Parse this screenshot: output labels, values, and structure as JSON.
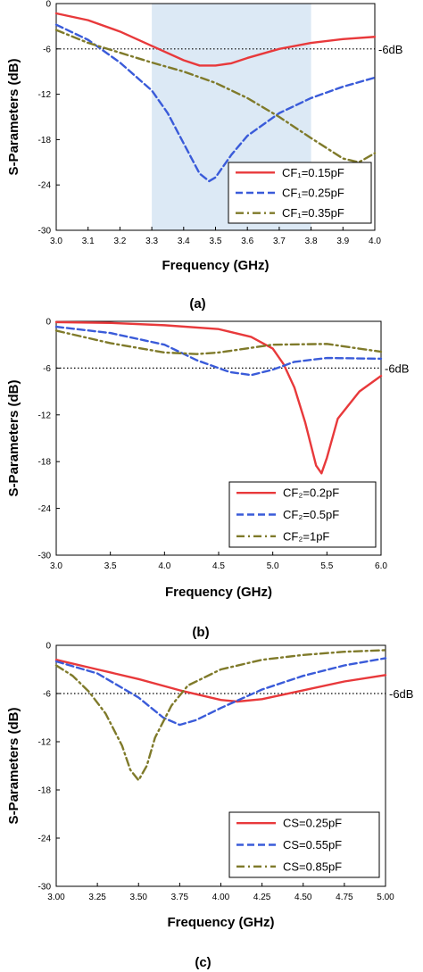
{
  "chart_data": [
    {
      "type": "line",
      "caption": "(a)",
      "xlabel": "Frequency (GHz)",
      "ylabel": "S-Parameters (dB)",
      "xlim": [
        3.0,
        4.0
      ],
      "ylim": [
        -30,
        0
      ],
      "xticks": [
        "3.0",
        "3.1",
        "3.2",
        "3.3",
        "3.4",
        "3.5",
        "3.6",
        "3.7",
        "3.8",
        "3.9",
        "4.0"
      ],
      "yticks": [
        "0",
        "-6",
        "-12",
        "-18",
        "-24",
        "-30"
      ],
      "xtick_values": [
        3.0,
        3.1,
        3.2,
        3.3,
        3.4,
        3.5,
        3.6,
        3.7,
        3.8,
        3.9,
        4.0
      ],
      "ytick_values": [
        0,
        -6,
        -12,
        -18,
        -24,
        -30
      ],
      "reference_line": {
        "y": -6,
        "label": "-6dB"
      },
      "shaded_band": {
        "x": [
          3.3,
          3.8
        ],
        "color": "#dce9f5"
      },
      "legend_position": "bottom-right",
      "series": [
        {
          "name": "CF₁=0.15pF",
          "color": "#e8393b",
          "style": "solid",
          "x": [
            3.0,
            3.1,
            3.2,
            3.3,
            3.4,
            3.45,
            3.5,
            3.55,
            3.6,
            3.7,
            3.8,
            3.9,
            4.0
          ],
          "y": [
            -1.3,
            -2.2,
            -3.7,
            -5.6,
            -7.5,
            -8.2,
            -8.2,
            -7.9,
            -7.2,
            -6.0,
            -5.2,
            -4.7,
            -4.4
          ]
        },
        {
          "name": "CF₁=0.25pF",
          "color": "#3a5bd9",
          "style": "dashed",
          "x": [
            3.0,
            3.1,
            3.2,
            3.3,
            3.35,
            3.4,
            3.45,
            3.48,
            3.5,
            3.55,
            3.6,
            3.7,
            3.8,
            3.9,
            4.0
          ],
          "y": [
            -2.8,
            -4.8,
            -7.8,
            -11.5,
            -14.5,
            -18.5,
            -22.5,
            -23.5,
            -23.0,
            -20.0,
            -17.5,
            -14.5,
            -12.5,
            -11.0,
            -9.8
          ]
        },
        {
          "name": "CF₁=0.35pF",
          "color": "#7f7a2a",
          "style": "dashdot",
          "x": [
            3.0,
            3.1,
            3.2,
            3.3,
            3.4,
            3.5,
            3.6,
            3.7,
            3.8,
            3.9,
            3.95,
            4.0
          ],
          "y": [
            -3.5,
            -5.2,
            -6.5,
            -7.8,
            -9.0,
            -10.5,
            -12.5,
            -15.0,
            -17.8,
            -20.5,
            -21.0,
            -19.8
          ]
        }
      ]
    },
    {
      "type": "line",
      "caption": "(b)",
      "xlabel": "Frequency (GHz)",
      "ylabel": "S-Parameters (dB)",
      "xlim": [
        3.0,
        6.0
      ],
      "ylim": [
        -30,
        0
      ],
      "xticks": [
        "3.0",
        "3.5",
        "4.0",
        "4.5",
        "5.0",
        "5.5",
        "6.0"
      ],
      "yticks": [
        "0",
        "-6",
        "-12",
        "-18",
        "-24",
        "-30"
      ],
      "xtick_values": [
        3.0,
        3.5,
        4.0,
        4.5,
        5.0,
        5.5,
        6.0
      ],
      "ytick_values": [
        0,
        -6,
        -12,
        -18,
        -24,
        -30
      ],
      "reference_line": {
        "y": -6,
        "label": "-6dB"
      },
      "legend_position": "bottom-right",
      "series": [
        {
          "name": "CF₂=0.2pF",
          "color": "#e8393b",
          "style": "solid",
          "x": [
            3.0,
            3.5,
            4.0,
            4.5,
            4.8,
            5.0,
            5.1,
            5.2,
            5.3,
            5.4,
            5.45,
            5.5,
            5.6,
            5.8,
            6.0
          ],
          "y": [
            -0.1,
            -0.2,
            -0.5,
            -1.0,
            -2.0,
            -3.5,
            -5.5,
            -8.5,
            -13.0,
            -18.5,
            -19.5,
            -17.5,
            -12.5,
            -9.0,
            -7.0
          ]
        },
        {
          "name": "CF₂=0.5pF",
          "color": "#3a5bd9",
          "style": "dashed",
          "x": [
            3.0,
            3.5,
            4.0,
            4.3,
            4.6,
            4.8,
            5.0,
            5.2,
            5.5,
            6.0
          ],
          "y": [
            -0.7,
            -1.5,
            -3.0,
            -5.0,
            -6.5,
            -6.9,
            -6.2,
            -5.2,
            -4.7,
            -4.8
          ]
        },
        {
          "name": "CF₂=1pF",
          "color": "#7f7a2a",
          "style": "dashdot",
          "x": [
            3.0,
            3.5,
            4.0,
            4.3,
            4.5,
            5.0,
            5.5,
            6.0
          ],
          "y": [
            -1.2,
            -2.8,
            -4.0,
            -4.2,
            -4.0,
            -3.0,
            -2.9,
            -3.9
          ]
        }
      ]
    },
    {
      "type": "line",
      "caption": "(c)",
      "xlabel": "Frequency (GHz)",
      "ylabel": "S-Parameters (dB)",
      "xlim": [
        3.0,
        5.0
      ],
      "ylim": [
        -30,
        0
      ],
      "xticks": [
        "3.00",
        "3.25",
        "3.50",
        "3.75",
        "4.00",
        "4.25",
        "4.50",
        "4.75",
        "5.00"
      ],
      "yticks": [
        "0",
        "-6",
        "-12",
        "-18",
        "-24",
        "-30"
      ],
      "xtick_values": [
        3.0,
        3.25,
        3.5,
        3.75,
        4.0,
        4.25,
        4.5,
        4.75,
        5.0
      ],
      "ytick_values": [
        0,
        -6,
        -12,
        -18,
        -24,
        -30
      ],
      "reference_line": {
        "y": -6,
        "label": "-6dB"
      },
      "legend_position": "bottom-right",
      "series": [
        {
          "name": "CS=0.25pF",
          "color": "#e8393b",
          "style": "solid",
          "x": [
            3.0,
            3.25,
            3.5,
            3.75,
            4.0,
            4.1,
            4.25,
            4.5,
            4.75,
            5.0
          ],
          "y": [
            -1.8,
            -3.0,
            -4.2,
            -5.6,
            -6.8,
            -7.0,
            -6.7,
            -5.6,
            -4.5,
            -3.7
          ]
        },
        {
          "name": "CS=0.55pF",
          "color": "#3a5bd9",
          "style": "dashed",
          "x": [
            3.0,
            3.25,
            3.5,
            3.65,
            3.75,
            3.85,
            4.0,
            4.25,
            4.5,
            4.75,
            5.0
          ],
          "y": [
            -2.0,
            -3.5,
            -6.5,
            -9.0,
            -9.9,
            -9.3,
            -7.8,
            -5.5,
            -3.8,
            -2.5,
            -1.6
          ]
        },
        {
          "name": "CS=0.85pF",
          "color": "#7f7a2a",
          "style": "dashdot",
          "x": [
            3.0,
            3.1,
            3.2,
            3.3,
            3.4,
            3.45,
            3.5,
            3.55,
            3.6,
            3.7,
            3.8,
            4.0,
            4.25,
            4.5,
            4.75,
            5.0
          ],
          "y": [
            -2.5,
            -3.8,
            -5.8,
            -8.5,
            -12.5,
            -15.5,
            -16.8,
            -15.0,
            -11.5,
            -7.5,
            -5.0,
            -3.0,
            -1.8,
            -1.2,
            -0.8,
            -0.6
          ]
        }
      ]
    }
  ]
}
